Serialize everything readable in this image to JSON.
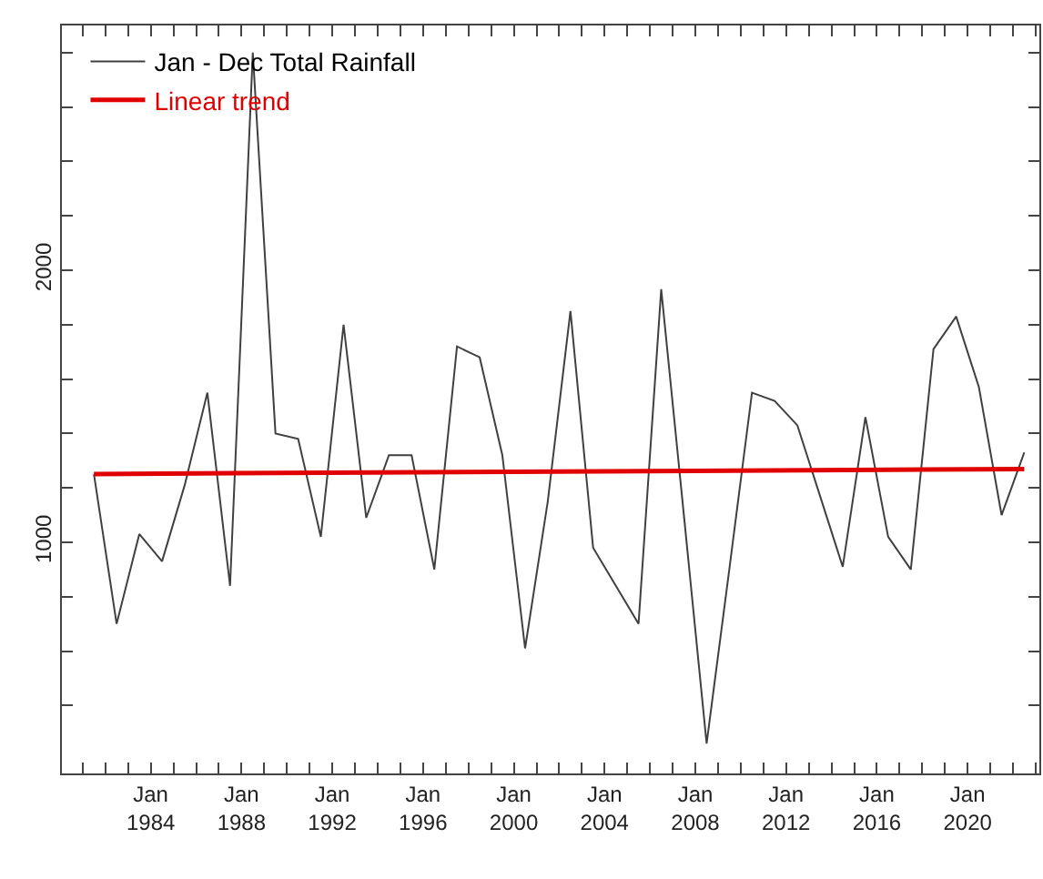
{
  "chart_data": {
    "type": "line",
    "x": [
      "1981-07",
      "1982-07",
      "1983-07",
      "1984-07",
      "1985-07",
      "1986-07",
      "1987-07",
      "1988-07",
      "1989-07",
      "1990-07",
      "1991-07",
      "1992-07",
      "1993-07",
      "1994-07",
      "1995-07",
      "1996-07",
      "1997-07",
      "1998-07",
      "1999-07",
      "2000-07",
      "2001-07",
      "2002-07",
      "2003-07",
      "2004-07",
      "2005-07",
      "2006-07",
      "2007-07",
      "2008-07",
      "2009-07",
      "2010-07",
      "2011-07",
      "2012-07",
      "2013-07",
      "2014-07",
      "2015-07",
      "2016-07",
      "2017-07",
      "2018-07",
      "2019-07",
      "2020-07",
      "2021-07",
      "2022-07"
    ],
    "series": [
      {
        "name": "Jan - Dec Total Rainfall",
        "color": "#404040",
        "values": [
          1250,
          700,
          1030,
          930,
          1210,
          1550,
          840,
          2800,
          1400,
          1380,
          1020,
          1800,
          1090,
          1320,
          1320,
          900,
          1720,
          1680,
          1320,
          610,
          1150,
          1850,
          980,
          840,
          700,
          1930,
          1100,
          260,
          900,
          1550,
          1520,
          1430,
          1170,
          910,
          1460,
          1020,
          900,
          1710,
          1830,
          1570,
          1100,
          1330
        ]
      },
      {
        "name": "Linear trend",
        "color": "#e00000",
        "type": "line",
        "x": [
          "1981-07",
          "2022-07"
        ],
        "values": [
          1251,
          1269
        ]
      }
    ],
    "xlim": [
      "1980-02",
      "2023-03"
    ],
    "xticks": [
      {
        "value": "1981-01",
        "label": null
      },
      {
        "value": "1982-01",
        "label": null
      },
      {
        "value": "1983-01",
        "label": null
      },
      {
        "value": "1984-01",
        "label": "Jan\n1984"
      },
      {
        "value": "1985-01",
        "label": null
      },
      {
        "value": "1986-01",
        "label": null
      },
      {
        "value": "1987-01",
        "label": null
      },
      {
        "value": "1988-01",
        "label": "Jan\n1988"
      },
      {
        "value": "1989-01",
        "label": null
      },
      {
        "value": "1990-01",
        "label": null
      },
      {
        "value": "1991-01",
        "label": null
      },
      {
        "value": "1992-01",
        "label": "Jan\n1992"
      },
      {
        "value": "1993-01",
        "label": null
      },
      {
        "value": "1994-01",
        "label": null
      },
      {
        "value": "1995-01",
        "label": null
      },
      {
        "value": "1996-01",
        "label": "Jan\n1996"
      },
      {
        "value": "1997-01",
        "label": null
      },
      {
        "value": "1998-01",
        "label": null
      },
      {
        "value": "1999-01",
        "label": null
      },
      {
        "value": "2000-01",
        "label": "Jan\n2000"
      },
      {
        "value": "2001-01",
        "label": null
      },
      {
        "value": "2002-01",
        "label": null
      },
      {
        "value": "2003-01",
        "label": null
      },
      {
        "value": "2004-01",
        "label": "Jan\n2004"
      },
      {
        "value": "2005-01",
        "label": null
      },
      {
        "value": "2006-01",
        "label": null
      },
      {
        "value": "2007-01",
        "label": null
      },
      {
        "value": "2008-01",
        "label": "Jan\n2008"
      },
      {
        "value": "2009-01",
        "label": null
      },
      {
        "value": "2010-01",
        "label": null
      },
      {
        "value": "2011-01",
        "label": null
      },
      {
        "value": "2012-01",
        "label": "Jan\n2012"
      },
      {
        "value": "2013-01",
        "label": null
      },
      {
        "value": "2014-01",
        "label": null
      },
      {
        "value": "2015-01",
        "label": null
      },
      {
        "value": "2016-01",
        "label": "Jan\n2016"
      },
      {
        "value": "2017-01",
        "label": null
      },
      {
        "value": "2018-01",
        "label": null
      },
      {
        "value": "2019-01",
        "label": null
      },
      {
        "value": "2020-01",
        "label": "Jan\n2020"
      },
      {
        "value": "2021-01",
        "label": null
      },
      {
        "value": "2022-01",
        "label": null
      },
      {
        "value": "2023-01",
        "label": null
      }
    ],
    "ylim": [
      150,
      2900
    ],
    "yticks": [
      {
        "value": 400,
        "label": null
      },
      {
        "value": 600,
        "label": null
      },
      {
        "value": 800,
        "label": null
      },
      1000,
      {
        "value": 1200,
        "label": null
      },
      {
        "value": 1400,
        "label": null
      },
      {
        "value": 1600,
        "label": null
      },
      {
        "value": 1800,
        "label": null
      },
      2000,
      {
        "value": 2200,
        "label": null
      },
      {
        "value": 2400,
        "label": null
      },
      {
        "value": 2600,
        "label": null
      },
      {
        "value": 2800,
        "label": null
      }
    ],
    "legend": "top left",
    "marker": "none",
    "line_style": "solid"
  }
}
